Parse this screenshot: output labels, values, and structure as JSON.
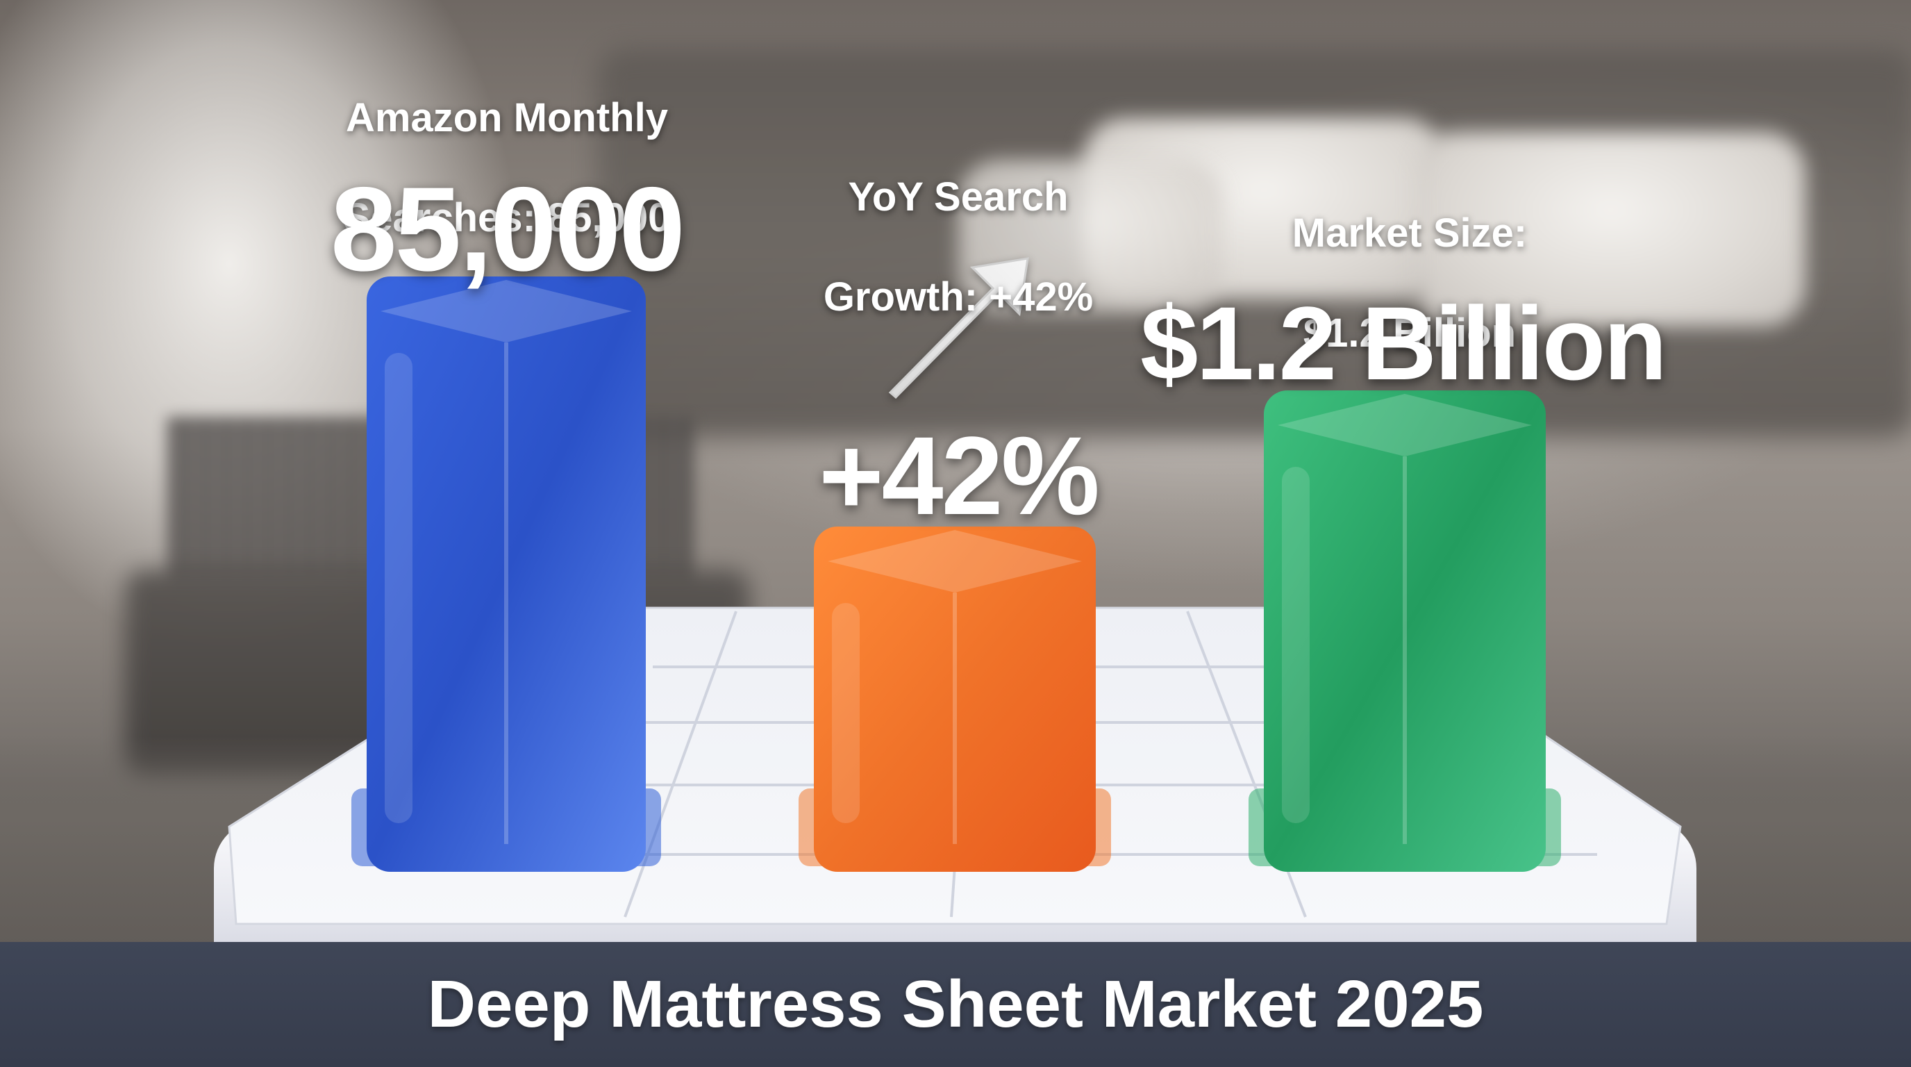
{
  "title": "Deep Mattress Sheet Market 2025",
  "chart_data": {
    "type": "bar",
    "title": "Deep Mattress Sheet Market 2025",
    "categories": [
      "Amazon Monthly Searches: 85,000",
      "YoY Search Growth: +42%",
      "Market Size: $1.2 Billion"
    ],
    "values": [
      "85,000",
      "+42%",
      "$1.2 Billion"
    ],
    "bars": [
      {
        "caption_line1": "Amazon Monthly",
        "caption_line2": "Searches: 85,000",
        "value_label": "85,000",
        "value": 85000,
        "color": "#2f5fd6"
      },
      {
        "caption_line1": "YoY Search",
        "caption_line2": "Growth: +42%",
        "value_label": "+42%",
        "value": 42,
        "color": "#f07a32"
      },
      {
        "caption_line1": "Market Size:",
        "caption_line2": "$1.2 Billion",
        "value_label": "$1.2 Billion",
        "value": 1.2,
        "color": "#2fae6e"
      }
    ],
    "trend_arrow": "up-right-arrow-icon",
    "grid": false,
    "legend": "none"
  }
}
